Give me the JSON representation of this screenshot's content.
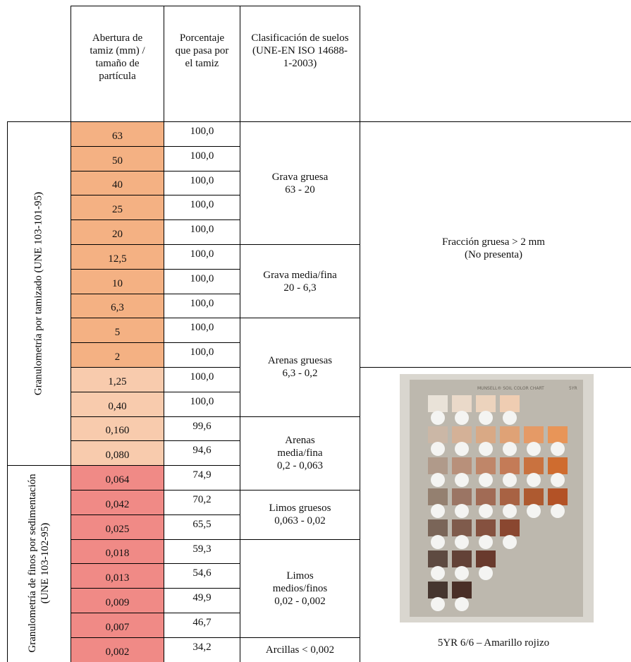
{
  "header": {
    "columns": [
      "Abertura de tamiz (mm) / tamaño de partícula",
      "Porcentaje que pasa por el tamiz",
      "Clasificación de suelos (UNE-EN ISO 14688-1-2003)"
    ]
  },
  "methods": [
    "Granulometría  por tamizado (UNE 103-101-95)",
    "Granulometría de finos por sedimentación (UNE 103-102-95)"
  ],
  "table": {
    "rows": [
      [
        "63",
        "100,0"
      ],
      [
        "50",
        "100,0"
      ],
      [
        "40",
        "100,0"
      ],
      [
        "25",
        "100,0"
      ],
      [
        "20",
        "100,0"
      ],
      [
        "12,5",
        "100,0"
      ],
      [
        "10",
        "100,0"
      ],
      [
        "6,3",
        "100,0"
      ],
      [
        "5",
        "100,0"
      ],
      [
        "2",
        "100,0"
      ],
      [
        "1,25",
        "100,0"
      ],
      [
        "0,40",
        "100,0"
      ],
      [
        "0,160",
        "99,6"
      ],
      [
        "0,080",
        "94,6"
      ],
      [
        "0,064",
        "74,9"
      ],
      [
        "0,042",
        "70,2"
      ],
      [
        "0,025",
        "65,5"
      ],
      [
        "0,018",
        "59,3"
      ],
      [
        "0,013",
        "54,6"
      ],
      [
        "0,009",
        "49,9"
      ],
      [
        "0,007",
        "46,7"
      ],
      [
        "0,002",
        "34,2"
      ]
    ]
  },
  "classification": [
    "Grava gruesa\n63 - 20",
    "Grava media/fina\n20 - 6,3",
    "Arenas gruesas\n6,3 - 0,2",
    "Arenas\nmedia/fina\n0,2 - 0,063",
    "Limos gruesos\n0,063 - 0,02",
    "Limos\nmedios/finos\n0,02 - 0,002",
    "Arcillas < 0,002"
  ],
  "coarse_fraction": "Fracción gruesa > 2 mm\n(No presenta)",
  "photo": {
    "title": "MUNSELL® SOIL COLOR CHART",
    "hue": "5YR"
  },
  "caption": "5YR 6/6 – Amarillo rojizo"
}
